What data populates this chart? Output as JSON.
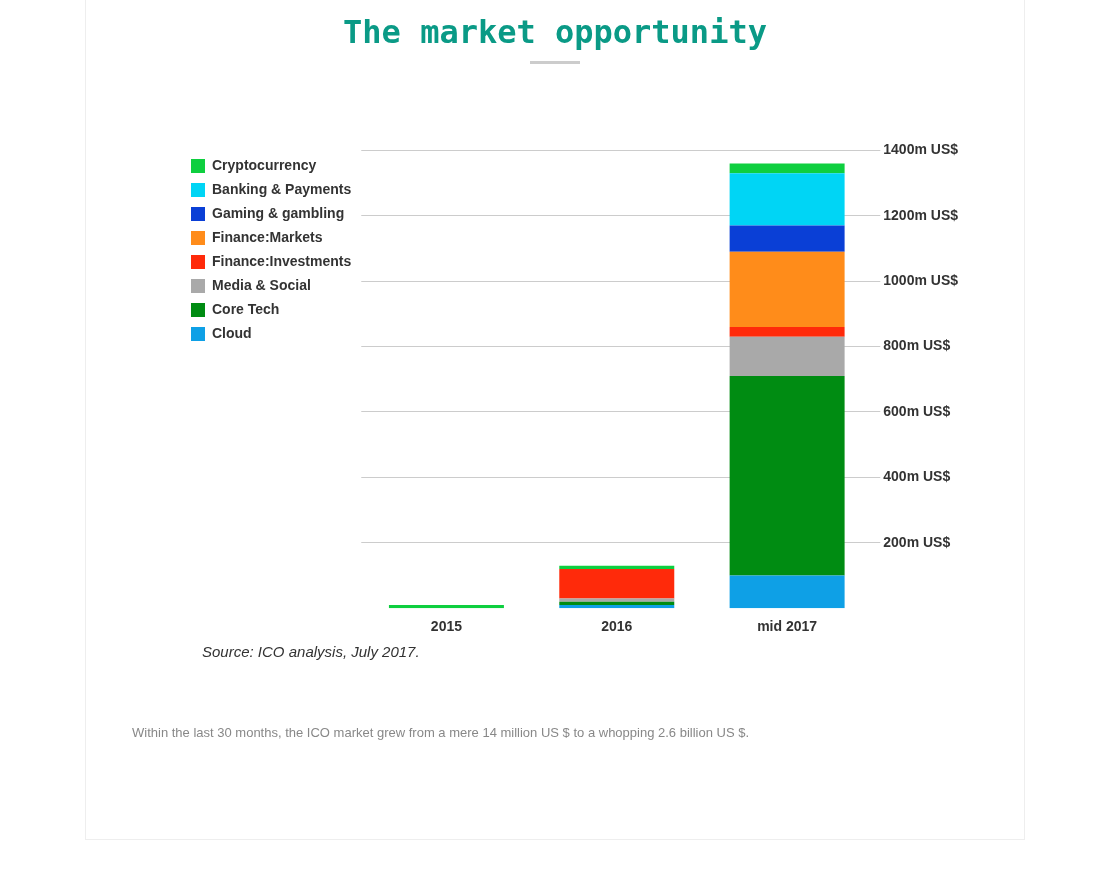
{
  "chart_data": {
    "type": "bar",
    "title": "The market opportunity",
    "stacked": true,
    "categories": [
      "2015",
      "2016",
      "mid 2017"
    ],
    "series": [
      {
        "name": "Cloud",
        "color": "#0ea0e6",
        "values": [
          0,
          10,
          100
        ]
      },
      {
        "name": "Core Tech",
        "color": "#008c12",
        "values": [
          0,
          10,
          610
        ]
      },
      {
        "name": "Media & Social",
        "color": "#a9a9a9",
        "values": [
          0,
          10,
          120
        ]
      },
      {
        "name": "Finance:Investments",
        "color": "#ff2a0a",
        "values": [
          0,
          90,
          30
        ]
      },
      {
        "name": "Finance:Markets",
        "color": "#ff8c1a",
        "values": [
          0,
          0,
          230
        ]
      },
      {
        "name": "Gaming & gambling",
        "color": "#0a3fd6",
        "values": [
          0,
          0,
          80
        ]
      },
      {
        "name": "Banking & Payments",
        "color": "#00d5f5",
        "values": [
          0,
          0,
          160
        ]
      },
      {
        "name": "Cryptocurrency",
        "color": "#0ecf3f",
        "values": [
          10,
          10,
          30
        ]
      }
    ],
    "ylim": [
      0,
      1400
    ],
    "yticks": [
      {
        "value": 200,
        "label": "200m US$"
      },
      {
        "value": 400,
        "label": "400m US$"
      },
      {
        "value": 600,
        "label": "600m US$"
      },
      {
        "value": 800,
        "label": "800m US$"
      },
      {
        "value": 1000,
        "label": "1000m US$"
      },
      {
        "value": 1200,
        "label": "1200m US$"
      },
      {
        "value": 1400,
        "label": "1400m US$"
      }
    ],
    "grid": "y",
    "legend": "top left",
    "annotations": [
      "Source: ICO analysis, July 2017.",
      "Within the last 30 months, the ICO market grew from a mere 14 million US $ to a whopping 2.6 billion US $."
    ]
  }
}
